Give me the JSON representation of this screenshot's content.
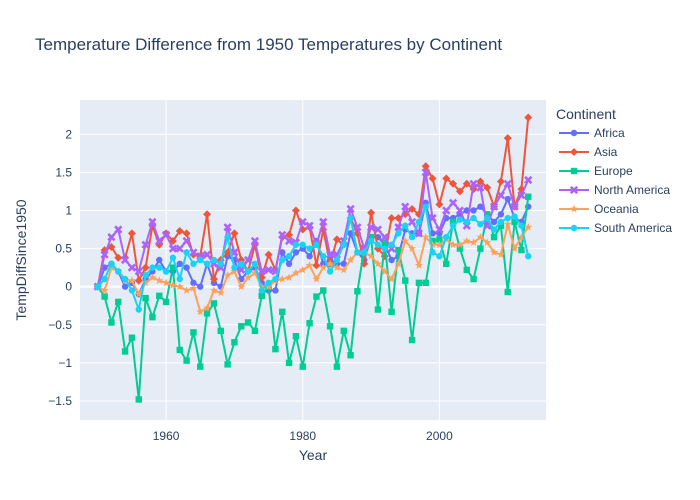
{
  "chart_data": {
    "type": "line",
    "title": "Temperature Difference from 1950 Temperatures by Continent",
    "xlabel": "Year",
    "ylabel": "TempDiffSince1950",
    "xlim": [
      1947.4,
      2015.6
    ],
    "ylim": [
      -1.75,
      2.45
    ],
    "x_ticks": [
      1960,
      1980,
      2000
    ],
    "x_tick_labels": [
      "1960",
      "1980",
      "2000"
    ],
    "y_ticks": [
      -1.5,
      -1,
      -0.5,
      0,
      0.5,
      1,
      1.5,
      2
    ],
    "y_tick_labels": [
      "−1.5",
      "−1",
      "−0.5",
      "0",
      "0.5",
      "1",
      "1.5",
      "2"
    ],
    "legend_title": "Continent",
    "legend_position": "right",
    "grid": true,
    "x": [
      1950,
      1951,
      1952,
      1953,
      1954,
      1955,
      1956,
      1957,
      1958,
      1959,
      1960,
      1961,
      1962,
      1963,
      1964,
      1965,
      1966,
      1967,
      1968,
      1969,
      1970,
      1971,
      1972,
      1973,
      1974,
      1975,
      1976,
      1977,
      1978,
      1979,
      1980,
      1981,
      1982,
      1983,
      1984,
      1985,
      1986,
      1987,
      1988,
      1989,
      1990,
      1991,
      1992,
      1993,
      1994,
      1995,
      1996,
      1997,
      1998,
      1999,
      2000,
      2001,
      2002,
      2003,
      2004,
      2005,
      2006,
      2007,
      2008,
      2009,
      2010,
      2011,
      2012,
      2013
    ],
    "series": [
      {
        "name": "Africa",
        "color": "#636efa",
        "marker": "circle",
        "values": [
          0,
          0.25,
          0.3,
          0.2,
          0.0,
          0.05,
          -0.1,
          0.1,
          0.2,
          0.35,
          0.2,
          0.2,
          0.3,
          0.25,
          0.05,
          0.0,
          0.3,
          0.05,
          0.0,
          0.4,
          0.35,
          0.1,
          0.2,
          0.25,
          0.05,
          -0.05,
          -0.05,
          0.45,
          0.3,
          0.45,
          0.5,
          0.4,
          0.6,
          0.3,
          0.35,
          0.3,
          0.3,
          0.7,
          0.45,
          0.35,
          0.65,
          0.65,
          0.55,
          0.35,
          0.4,
          0.75,
          0.7,
          0.7,
          1.1,
          0.7,
          0.7,
          0.9,
          0.9,
          0.95,
          1.0,
          1.0,
          1.05,
          0.95,
          0.85,
          0.95,
          1.15,
          0.9,
          0.85,
          1.05
        ]
      },
      {
        "name": "Asia",
        "color": "#ef553b",
        "marker": "diamond",
        "values": [
          0,
          0.48,
          0.52,
          0.38,
          0.38,
          0.7,
          0.08,
          0.25,
          0.8,
          0.55,
          0.7,
          0.6,
          0.73,
          0.7,
          0.42,
          0.4,
          0.95,
          0.1,
          0.35,
          0.45,
          0.7,
          0.35,
          0.2,
          0.55,
          0.12,
          0.42,
          0.22,
          0.65,
          0.68,
          1.0,
          0.75,
          0.78,
          0.28,
          0.75,
          0.3,
          0.62,
          0.55,
          0.9,
          0.7,
          0.3,
          0.97,
          0.5,
          0.4,
          0.9,
          0.9,
          0.95,
          1.02,
          0.95,
          1.58,
          1.42,
          1.08,
          1.42,
          1.35,
          1.25,
          1.35,
          1.28,
          1.38,
          1.3,
          1.05,
          1.38,
          1.95,
          1.05,
          1.28,
          2.22
        ]
      },
      {
        "name": "Europe",
        "color": "#00cc96",
        "marker": "square",
        "values": [
          0,
          -0.13,
          -0.47,
          -0.2,
          -0.85,
          -0.67,
          -1.48,
          -0.15,
          -0.4,
          -0.12,
          -0.2,
          0.25,
          -0.83,
          -0.97,
          -0.6,
          -1.05,
          -0.35,
          -0.22,
          -0.58,
          -1.02,
          -0.73,
          -0.52,
          -0.47,
          -0.58,
          -0.12,
          0.0,
          -0.82,
          -0.33,
          -1.0,
          -0.65,
          -1.05,
          -0.48,
          -0.13,
          -0.05,
          -0.52,
          -1.05,
          -0.58,
          -0.9,
          -0.06,
          0.5,
          0.65,
          -0.3,
          0.58,
          -0.33,
          0.48,
          0.08,
          -0.7,
          0.05,
          0.05,
          0.6,
          0.62,
          0.3,
          0.85,
          0.5,
          0.22,
          0.1,
          0.5,
          0.95,
          0.65,
          0.8,
          -0.07,
          0.85,
          0.48,
          1.18
        ]
      },
      {
        "name": "North America",
        "color": "#ab63fa",
        "marker": "x",
        "values": [
          0,
          0.42,
          0.65,
          0.75,
          0.35,
          0.25,
          0.2,
          0.55,
          0.85,
          0.6,
          0.68,
          0.5,
          0.5,
          0.6,
          0.45,
          0.4,
          0.42,
          0.3,
          0.25,
          0.78,
          0.45,
          0.22,
          0.35,
          0.6,
          0.2,
          0.22,
          0.2,
          0.68,
          0.6,
          0.58,
          0.85,
          0.8,
          0.55,
          0.85,
          0.42,
          0.42,
          0.6,
          1.02,
          0.78,
          0.5,
          0.78,
          0.75,
          0.65,
          0.5,
          0.78,
          1.05,
          0.85,
          0.7,
          1.5,
          0.9,
          0.75,
          1.0,
          1.1,
          1.0,
          0.8,
          1.35,
          1.3,
          0.8,
          1.05,
          1.2,
          1.35,
          1.05,
          1.2,
          1.4
        ]
      },
      {
        "name": "Oceania",
        "color": "#ffa15a",
        "marker": "star",
        "values": [
          0,
          -0.05,
          0.25,
          0.2,
          0.08,
          0.08,
          -0.1,
          0.05,
          0.12,
          0.08,
          0.05,
          0.02,
          0.0,
          -0.05,
          -0.02,
          -0.33,
          -0.28,
          -0.05,
          -0.08,
          0.15,
          0.2,
          0.0,
          0.12,
          0.18,
          0.0,
          0.0,
          0.08,
          0.1,
          0.12,
          0.18,
          0.22,
          0.28,
          0.1,
          0.25,
          0.3,
          0.25,
          0.22,
          0.35,
          0.45,
          0.45,
          0.4,
          0.3,
          0.2,
          0.1,
          0.3,
          0.6,
          0.5,
          0.28,
          0.65,
          0.55,
          0.55,
          0.62,
          0.55,
          0.55,
          0.6,
          0.58,
          0.65,
          0.58,
          0.45,
          0.42,
          0.82,
          0.5,
          0.65,
          0.78
        ]
      },
      {
        "name": "South America",
        "color": "#19d3f3",
        "marker": "circle",
        "values": [
          0,
          0.1,
          0.3,
          0.2,
          0.1,
          -0.05,
          -0.3,
          0.15,
          0.25,
          0.25,
          0.2,
          0.38,
          0.1,
          0.45,
          0.3,
          0.35,
          0.3,
          0.35,
          0.3,
          0.65,
          0.25,
          0.3,
          0.2,
          0.3,
          -0.05,
          0.05,
          0.1,
          0.35,
          0.4,
          0.55,
          0.55,
          0.5,
          0.55,
          0.4,
          0.2,
          0.35,
          0.55,
          0.9,
          0.45,
          0.45,
          0.6,
          0.55,
          0.5,
          0.55,
          0.7,
          0.8,
          0.65,
          0.85,
          1.05,
          0.45,
          0.4,
          0.65,
          0.8,
          0.88,
          0.85,
          0.9,
          0.82,
          0.9,
          0.75,
          0.85,
          0.9,
          0.92,
          0.8,
          0.4
        ]
      }
    ]
  }
}
